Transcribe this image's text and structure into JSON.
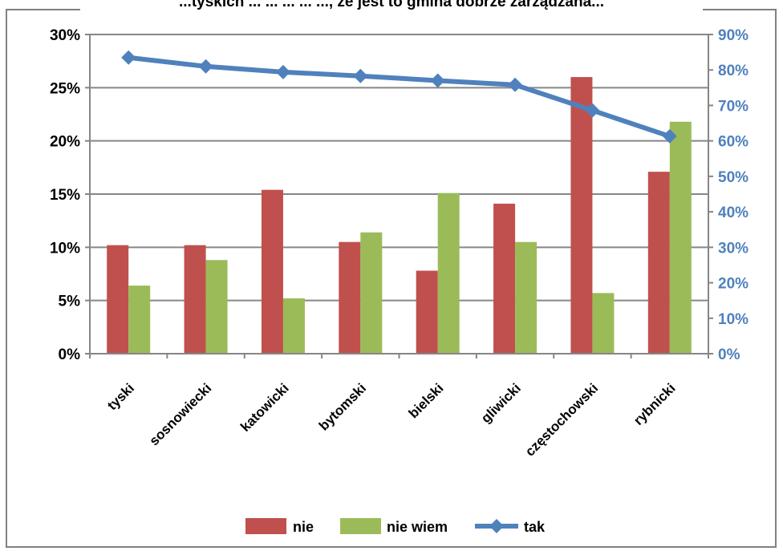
{
  "chart_data": {
    "type": "bar",
    "title_fragment": "...tyskich ... ... ... ... ..., że jest to gmina dobrze zarządzana...",
    "categories": [
      "tyski",
      "sosnowiecki",
      "katowicki",
      "bytomski",
      "bielski",
      "gliwicki",
      "częstochowski",
      "rybnicki"
    ],
    "series": [
      {
        "name": "nie",
        "axis": "left",
        "kind": "bar",
        "color": "#c0504d",
        "values": [
          10.2,
          10.2,
          15.4,
          10.5,
          7.8,
          14.1,
          26.0,
          17.1
        ]
      },
      {
        "name": "nie wiem",
        "axis": "left",
        "kind": "bar",
        "color": "#9bbb59",
        "values": [
          6.4,
          8.8,
          5.2,
          11.4,
          15.1,
          10.5,
          5.7,
          21.8
        ]
      },
      {
        "name": "tak",
        "axis": "right",
        "kind": "line",
        "color": "#4f81bd",
        "values": [
          83.5,
          81.0,
          79.4,
          78.3,
          77.0,
          75.8,
          68.6,
          61.3
        ]
      }
    ],
    "y_left": {
      "ylim": [
        0,
        30
      ],
      "ticks": [
        "0%",
        "5%",
        "10%",
        "15%",
        "20%",
        "25%",
        "30%"
      ]
    },
    "y_right": {
      "ylim": [
        0,
        90
      ],
      "ticks": [
        "0%",
        "10%",
        "20%",
        "30%",
        "40%",
        "50%",
        "60%",
        "70%",
        "80%",
        "90%"
      ]
    },
    "grid": true,
    "legend_position": "bottom",
    "legend": [
      "nie",
      "nie wiem",
      "tak"
    ]
  }
}
